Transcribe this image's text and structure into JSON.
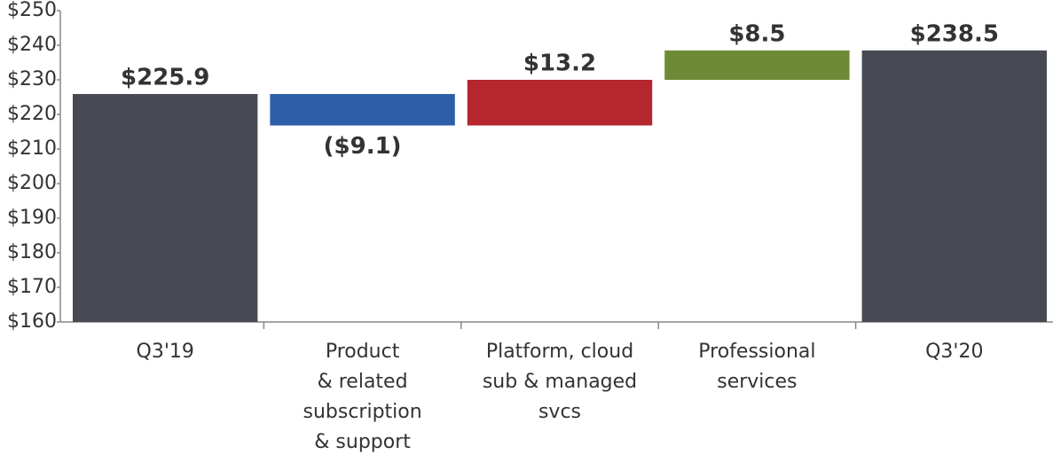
{
  "chart_data": {
    "type": "waterfall",
    "categories": [
      "Q3'19",
      "Product\n& related\nsubscription\n& support",
      "Platform, cloud\nsub & managed\nsvcs",
      "Professional\nservices",
      "Q3'20"
    ],
    "values": [
      225.9,
      -9.1,
      13.2,
      8.5,
      238.5
    ],
    "value_labels": [
      "$225.9",
      "($9.1)",
      "$13.2",
      "$8.5",
      "$238.5"
    ],
    "measure": [
      "total",
      "relative",
      "relative",
      "relative",
      "total"
    ],
    "colors": [
      "#474a52",
      "#2e5ea8",
      "#b5262e",
      "#6f8a36",
      "#474a52"
    ],
    "ylim": [
      160,
      250
    ],
    "yticks": [
      {
        "value": 160,
        "label": "$160"
      },
      {
        "value": 170,
        "label": "$170"
      },
      {
        "value": 180,
        "label": "$180"
      },
      {
        "value": 190,
        "label": "$190"
      },
      {
        "value": 200,
        "label": "$200"
      },
      {
        "value": 210,
        "label": "$210"
      },
      {
        "value": 220,
        "label": "$220"
      },
      {
        "value": 230,
        "label": "$230"
      },
      {
        "value": 240,
        "label": "$240"
      },
      {
        "value": 250,
        "label": "$250"
      }
    ]
  }
}
